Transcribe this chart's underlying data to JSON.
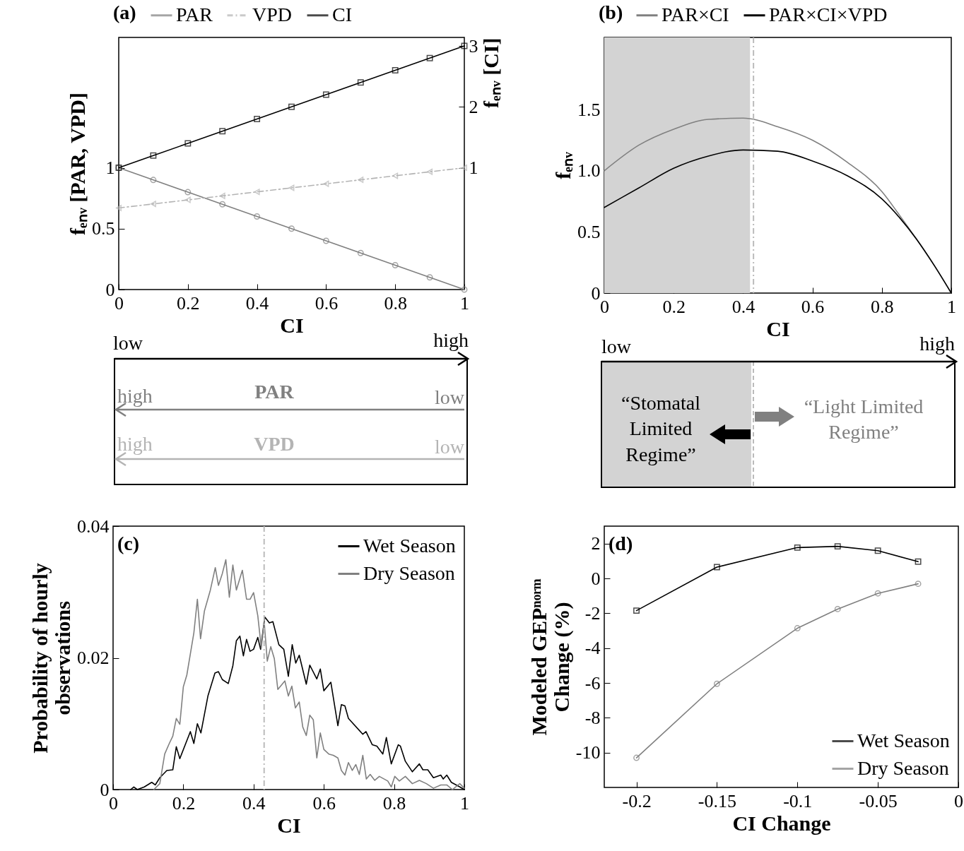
{
  "chart_data": [
    {
      "type": "line",
      "title": "(a)",
      "xlabel": "CI",
      "ylabel": "fₑₙᵥ [PAR, VPD]",
      "y2label": "fₑₙᵥ [CI]",
      "x": [
        0,
        0.1,
        0.2,
        0.3,
        0.4,
        0.5,
        0.6,
        0.7,
        0.8,
        0.9,
        1
      ],
      "xlim": [
        0,
        1
      ],
      "xticks": [
        0,
        0.2,
        0.4,
        0.6,
        0.8,
        1
      ],
      "ylim": [
        0,
        2.07
      ],
      "yticks": [
        0,
        0.5,
        1
      ],
      "y2lim": [
        -1,
        3.14
      ],
      "y2ticks": [
        1,
        2,
        3
      ],
      "legend": "top",
      "grid": false,
      "series": [
        {
          "name": "PAR",
          "color": "#808080",
          "marker": "circle",
          "values": [
            1,
            0.9,
            0.8,
            0.7,
            0.6,
            0.5,
            0.4,
            0.3,
            0.2,
            0.1,
            0
          ]
        },
        {
          "name": "VPD",
          "color": "#b4b4b4",
          "marker": "triangle",
          "line_style": "dashed",
          "values": [
            0.67,
            0.703,
            0.736,
            0.769,
            0.802,
            0.835,
            0.868,
            0.901,
            0.934,
            0.967,
            1
          ]
        },
        {
          "name": "CI",
          "color": "#000000",
          "marker": "square",
          "axis": "y2",
          "values": [
            1,
            1.2,
            1.4,
            1.6,
            1.8,
            2,
            2.2,
            2.4,
            2.6,
            2.8,
            3
          ]
        }
      ],
      "annotations": [
        "low",
        "high",
        "high",
        "PAR",
        "low",
        "high",
        "VPD",
        "low"
      ]
    },
    {
      "type": "line",
      "title": "(b)",
      "xlabel": "CI",
      "ylabel": "fₑₙᵥ",
      "x": [
        0,
        0.1,
        0.2,
        0.3,
        0.4,
        0.5,
        0.6,
        0.7,
        0.8,
        0.85,
        0.9,
        0.95,
        1
      ],
      "xlim": [
        0,
        1
      ],
      "xticks": [
        0,
        0.2,
        0.4,
        0.6,
        0.8,
        1
      ],
      "ylim": [
        0,
        2.09
      ],
      "yticks": [
        0,
        0.5,
        {
          "value": 1,
          "label": "1.0"
        },
        1.5
      ],
      "legend": "top",
      "grid": false,
      "series": [
        {
          "name": "PAR×CI",
          "color": "#808080",
          "values": [
            1.0,
            1.21,
            1.34,
            1.42,
            1.43,
            1.36,
            1.25,
            1.07,
            0.83,
            0.64,
            0.44,
            0.23,
            0
          ]
        },
        {
          "name": "PAR×CI×VPD",
          "color": "#000000",
          "values": [
            0.7,
            0.86,
            1.02,
            1.12,
            1.17,
            1.16,
            1.08,
            0.96,
            0.77,
            0.62,
            0.44,
            0.23,
            0
          ]
        }
      ],
      "bands": [
        {
          "axis": "x",
          "from": 0,
          "to": 0.42,
          "color": "#d3d3d3"
        }
      ],
      "ref_lines": [
        {
          "axis": "x",
          "value": 0.43,
          "line_style": "dashed",
          "color": "#bbbbbb"
        }
      ],
      "annotations": [
        "low",
        "high",
        "“Stomatal Limited Regime”",
        "“Light Limited Regime”"
      ]
    },
    {
      "type": "line",
      "title": "(c)",
      "xlabel": "CI",
      "ylabel": "Probability of hourly\nobservations",
      "xlim": [
        0,
        1
      ],
      "xticks": [
        0,
        0.2,
        0.4,
        0.6,
        0.8,
        1
      ],
      "ylim": [
        0,
        0.04
      ],
      "yticks": [
        0,
        0.02,
        0.04
      ],
      "legend": "top right",
      "grid": false,
      "ref_lines": [
        {
          "axis": "x",
          "value": 0.43,
          "line_style": "dashed",
          "color": "#bbbbbb"
        }
      ],
      "series": [
        {
          "name": "Wet Season",
          "color": "#000000",
          "x": [
            0.05,
            0.059,
            0.069,
            0.089,
            0.11,
            0.12,
            0.133,
            0.153,
            0.17,
            0.18,
            0.19,
            0.22,
            0.23,
            0.24,
            0.25,
            0.27,
            0.29,
            0.3,
            0.311,
            0.328,
            0.341,
            0.351,
            0.361,
            0.371,
            0.38,
            0.39,
            0.4,
            0.412,
            0.42,
            0.432,
            0.445,
            0.455,
            0.472,
            0.486,
            0.499,
            0.51,
            0.52,
            0.53,
            0.55,
            0.56,
            0.58,
            0.59,
            0.6,
            0.62,
            0.64,
            0.65,
            0.66,
            0.67,
            0.711,
            0.72,
            0.738,
            0.751,
            0.768,
            0.778,
            0.792,
            0.812,
            0.818,
            0.832,
            0.852,
            0.872,
            0.882,
            0.896,
            0.912,
            0.933,
            0.94,
            0.95,
            0.963,
            0.987,
            1
          ],
          "values": [
            0,
            0.0004,
            0,
            0.0004,
            0.0011,
            0.0007,
            0.0018,
            0.0029,
            0.003,
            0.0065,
            0.0047,
            0.0088,
            0.007,
            0.01,
            0.0086,
            0.0142,
            0.0177,
            0.0179,
            0.0167,
            0.0161,
            0.0188,
            0.0226,
            0.0233,
            0.0203,
            0.0228,
            0.021,
            0.0213,
            0.0231,
            0.0213,
            0.0262,
            0.0253,
            0.0255,
            0.022,
            0.0213,
            0.0172,
            0.022,
            0.0192,
            0.0204,
            0.016,
            0.0189,
            0.0168,
            0.0183,
            0.015,
            0.0163,
            0.0097,
            0.0129,
            0.0127,
            0.0108,
            0.0084,
            0.0088,
            0.0068,
            0.0066,
            0.0054,
            0.0079,
            0.0039,
            0.0068,
            0.0066,
            0.0043,
            0.0027,
            0.0039,
            0.003,
            0.003,
            0.0018,
            0.0022,
            0.0016,
            0.0022,
            0.0011,
            0.0004,
            0
          ]
        },
        {
          "name": "Dry Season",
          "color": "#808080",
          "x": [
            0.116,
            0.133,
            0.147,
            0.16,
            0.17,
            0.18,
            0.19,
            0.2,
            0.21,
            0.22,
            0.23,
            0.24,
            0.249,
            0.26,
            0.277,
            0.291,
            0.3,
            0.311,
            0.321,
            0.331,
            0.341,
            0.351,
            0.368,
            0.38,
            0.39,
            0.4,
            0.412,
            0.422,
            0.43,
            0.439,
            0.449,
            0.459,
            0.469,
            0.489,
            0.499,
            0.509,
            0.519,
            0.53,
            0.54,
            0.55,
            0.56,
            0.57,
            0.58,
            0.59,
            0.6,
            0.614,
            0.627,
            0.64,
            0.65,
            0.66,
            0.67,
            0.681,
            0.691,
            0.701,
            0.711,
            0.721,
            0.732,
            0.745,
            0.758,
            0.782,
            0.792,
            0.802,
            0.815,
            0.832,
            0.852,
            0.872,
            0.892,
            0.912,
            0.933,
            0.95,
            0.966,
            0.987,
            1
          ],
          "values": [
            0,
            0.0009,
            0.0054,
            0.007,
            0.0081,
            0.0108,
            0.0099,
            0.0156,
            0.0174,
            0.0206,
            0.0238,
            0.0289,
            0.0229,
            0.0271,
            0.0303,
            0.0337,
            0.031,
            0.0328,
            0.0349,
            0.0292,
            0.0341,
            0.0303,
            0.0333,
            0.0289,
            0.0289,
            0.0299,
            0.0264,
            0.0215,
            0.0256,
            0.0195,
            0.0217,
            0.0199,
            0.0152,
            0.0165,
            0.0142,
            0.0157,
            0.0124,
            0.0133,
            0.0095,
            0.0082,
            0.0113,
            0.0106,
            0.0048,
            0.0086,
            0.0061,
            0.0054,
            0.0052,
            0.0048,
            0.0029,
            0.0022,
            0.0041,
            0.0029,
            0.0038,
            0.0023,
            0.0052,
            0.0016,
            0.0023,
            0.0014,
            0.002,
            0.0013,
            0.0004,
            0.002,
            0.0013,
            0.002,
            0.0009,
            0.0014,
            0.0009,
            0.0002,
            0.0007,
            0.0007,
            0,
            0.0009,
            0.0002
          ]
        }
      ]
    },
    {
      "type": "line",
      "title": "(d)",
      "xlabel": "CI Change",
      "ylabel": "Modeled GEPⁿᵒʳᵐ\nChange (%)",
      "x": [
        -0.2,
        -0.15,
        -0.1,
        -0.075,
        -0.05,
        -0.025
      ],
      "xlim": [
        -0.22,
        0
      ],
      "xticks": [
        -0.2,
        -0.15,
        -0.1,
        -0.05,
        0
      ],
      "ylim": [
        -12,
        3
      ],
      "yticks": [
        2,
        0,
        -2,
        -4,
        -6,
        -8,
        -10
      ],
      "legend": "bottom right",
      "grid": false,
      "series": [
        {
          "name": "Wet Season",
          "color": "#000000",
          "marker": "square",
          "values": [
            -1.85,
            0.65,
            1.77,
            1.84,
            1.59,
            0.96
          ]
        },
        {
          "name": "Dry Season",
          "color": "#808080",
          "marker": "circle",
          "values": [
            -10.3,
            -6.05,
            -2.86,
            -1.76,
            -0.86,
            -0.31
          ]
        }
      ]
    }
  ]
}
